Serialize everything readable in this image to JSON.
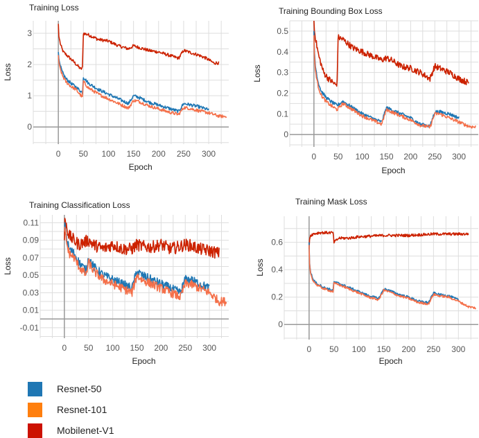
{
  "colors": {
    "resnet50": "#1f77b4",
    "resnet101": "#ff7f0e",
    "mobilenet": "#cc2200",
    "resnet101_line": "#f4704a",
    "grid": "#dddddd",
    "axis": "#999999",
    "text": "#222222",
    "tick_text": "#555555"
  },
  "legend": [
    {
      "label": "Resnet-50",
      "color": "#1f77b4"
    },
    {
      "label": "Resnet-101",
      "color": "#ff7f0e"
    },
    {
      "label": "Mobilenet-V1",
      "color": "#cc1100"
    }
  ],
  "chart_data": [
    {
      "type": "line",
      "title": "Training Loss",
      "xlabel": "Epoch",
      "ylabel": "Loss",
      "xlim": [
        -50,
        340
      ],
      "ylim": [
        -0.55,
        3.4
      ],
      "xticks": [
        0,
        50,
        100,
        150,
        200,
        250,
        300
      ],
      "yticks": [
        0,
        1,
        2,
        3
      ],
      "ytick_labels": [
        "0",
        "1",
        "2",
        "3"
      ],
      "grid": true,
      "series": [
        {
          "name": "Mobilenet-V1",
          "color": "#cc2200",
          "x": [
            0,
            1,
            5,
            10,
            20,
            30,
            45,
            48,
            50,
            60,
            80,
            100,
            120,
            140,
            150,
            160,
            180,
            200,
            220,
            240,
            250,
            260,
            280,
            295,
            310,
            320
          ],
          "y": [
            3.3,
            2.9,
            2.6,
            2.4,
            2.25,
            2.1,
            1.85,
            1.9,
            3.0,
            2.95,
            2.8,
            2.75,
            2.6,
            2.5,
            2.6,
            2.55,
            2.45,
            2.4,
            2.3,
            2.2,
            2.45,
            2.4,
            2.3,
            2.2,
            2.05,
            2.05
          ],
          "noise": 0.05
        },
        {
          "name": "Resnet-50",
          "color": "#1f77b4",
          "x": [
            0,
            1,
            3,
            8,
            15,
            25,
            35,
            48,
            50,
            60,
            80,
            100,
            120,
            140,
            150,
            160,
            180,
            200,
            220,
            240,
            250,
            260,
            280,
            300
          ],
          "y": [
            2.4,
            2.2,
            2.0,
            1.75,
            1.55,
            1.4,
            1.28,
            1.1,
            1.6,
            1.4,
            1.2,
            1.05,
            0.9,
            0.75,
            1.0,
            0.95,
            0.8,
            0.7,
            0.6,
            0.5,
            0.75,
            0.72,
            0.65,
            0.55
          ],
          "noise": 0.05
        },
        {
          "name": "Resnet-101",
          "color": "#f4704a",
          "x": [
            0,
            1,
            3,
            8,
            15,
            25,
            35,
            48,
            50,
            60,
            80,
            100,
            120,
            140,
            150,
            160,
            180,
            200,
            220,
            240,
            250,
            260,
            280,
            300,
            320,
            335
          ],
          "y": [
            2.3,
            2.1,
            1.9,
            1.65,
            1.45,
            1.3,
            1.2,
            0.95,
            1.45,
            1.25,
            1.05,
            0.9,
            0.75,
            0.6,
            0.85,
            0.82,
            0.68,
            0.58,
            0.48,
            0.4,
            0.62,
            0.6,
            0.52,
            0.45,
            0.35,
            0.33
          ],
          "noise": 0.05
        }
      ]
    },
    {
      "type": "line",
      "title": "Training Bounding Box Loss",
      "xlabel": "Epoch",
      "ylabel": "Loss",
      "xlim": [
        -50,
        340
      ],
      "ylim": [
        -0.06,
        0.55
      ],
      "xticks": [
        0,
        50,
        100,
        150,
        200,
        250,
        300
      ],
      "yticks": [
        0,
        0.1,
        0.2,
        0.3,
        0.4,
        0.5
      ],
      "ytick_labels": [
        "0",
        "0.1",
        "0.2",
        "0.3",
        "0.4",
        "0.5"
      ],
      "grid": true,
      "series": [
        {
          "name": "Mobilenet-V1",
          "color": "#cc2200",
          "x": [
            0,
            1,
            5,
            10,
            20,
            30,
            45,
            48,
            50,
            60,
            80,
            100,
            120,
            140,
            150,
            160,
            180,
            200,
            220,
            240,
            250,
            260,
            280,
            300,
            320
          ],
          "y": [
            0.55,
            0.5,
            0.44,
            0.38,
            0.3,
            0.27,
            0.24,
            0.25,
            0.47,
            0.46,
            0.42,
            0.4,
            0.38,
            0.36,
            0.37,
            0.36,
            0.33,
            0.32,
            0.3,
            0.27,
            0.33,
            0.32,
            0.3,
            0.27,
            0.25
          ],
          "noise": 0.015
        },
        {
          "name": "Resnet-50",
          "color": "#1f77b4",
          "x": [
            0,
            1,
            3,
            8,
            15,
            25,
            35,
            48,
            60,
            80,
            100,
            120,
            140,
            150,
            160,
            180,
            200,
            220,
            240,
            250,
            260,
            280,
            300
          ],
          "y": [
            0.5,
            0.4,
            0.33,
            0.26,
            0.21,
            0.18,
            0.16,
            0.14,
            0.16,
            0.13,
            0.1,
            0.08,
            0.06,
            0.13,
            0.12,
            0.1,
            0.08,
            0.05,
            0.04,
            0.11,
            0.11,
            0.1,
            0.08
          ],
          "noise": 0.008
        },
        {
          "name": "Resnet-101",
          "color": "#f4704a",
          "x": [
            0,
            1,
            3,
            8,
            15,
            25,
            35,
            48,
            60,
            80,
            100,
            120,
            140,
            150,
            160,
            180,
            200,
            220,
            240,
            250,
            260,
            280,
            300,
            320,
            335
          ],
          "y": [
            0.48,
            0.38,
            0.31,
            0.24,
            0.19,
            0.16,
            0.14,
            0.12,
            0.15,
            0.12,
            0.09,
            0.07,
            0.05,
            0.12,
            0.11,
            0.09,
            0.07,
            0.045,
            0.035,
            0.1,
            0.1,
            0.08,
            0.06,
            0.04,
            0.035
          ],
          "noise": 0.008
        }
      ]
    },
    {
      "type": "line",
      "title": "Training Classification Loss",
      "xlabel": "Epoch",
      "ylabel": "Loss",
      "xlim": [
        -50,
        340
      ],
      "ylim": [
        -0.022,
        0.119
      ],
      "xticks": [
        0,
        50,
        100,
        150,
        200,
        250,
        300
      ],
      "yticks": [
        -0.01,
        0.01,
        0.03,
        0.05,
        0.07,
        0.09,
        0.11
      ],
      "ytick_labels": [
        "-0.01",
        "0.01",
        "0.03",
        "0.05",
        "0.07",
        "0.09",
        "0.11"
      ],
      "grid": true,
      "series": [
        {
          "name": "Mobilenet-V1",
          "color": "#cc2200",
          "x": [
            0,
            1,
            5,
            10,
            20,
            30,
            50,
            60,
            80,
            100,
            120,
            140,
            150,
            160,
            180,
            200,
            220,
            240,
            250,
            260,
            280,
            300,
            320
          ],
          "y": [
            0.09,
            0.115,
            0.105,
            0.095,
            0.09,
            0.085,
            0.09,
            0.085,
            0.08,
            0.085,
            0.08,
            0.08,
            0.085,
            0.083,
            0.082,
            0.085,
            0.08,
            0.083,
            0.085,
            0.084,
            0.08,
            0.078,
            0.075
          ],
          "noise": 0.007
        },
        {
          "name": "Resnet-50",
          "color": "#1f77b4",
          "x": [
            0,
            1,
            5,
            10,
            20,
            30,
            45,
            50,
            60,
            80,
            100,
            120,
            140,
            150,
            160,
            180,
            200,
            220,
            240,
            250,
            260,
            280,
            300
          ],
          "y": [
            0.1,
            0.11,
            0.09,
            0.08,
            0.075,
            0.065,
            0.055,
            0.07,
            0.06,
            0.05,
            0.045,
            0.04,
            0.035,
            0.055,
            0.05,
            0.045,
            0.04,
            0.035,
            0.03,
            0.045,
            0.045,
            0.04,
            0.035
          ],
          "noise": 0.005
        },
        {
          "name": "Resnet-101",
          "color": "#f4704a",
          "x": [
            0,
            1,
            5,
            10,
            20,
            30,
            45,
            50,
            60,
            80,
            100,
            120,
            140,
            150,
            160,
            180,
            200,
            220,
            240,
            250,
            260,
            280,
            300,
            320,
            335
          ],
          "y": [
            0.1,
            0.105,
            0.085,
            0.075,
            0.07,
            0.06,
            0.05,
            0.065,
            0.055,
            0.045,
            0.04,
            0.035,
            0.03,
            0.05,
            0.045,
            0.04,
            0.035,
            0.03,
            0.025,
            0.04,
            0.04,
            0.035,
            0.03,
            0.02,
            0.02
          ],
          "noise": 0.005
        }
      ]
    },
    {
      "type": "line",
      "title": "Training Mask Loss",
      "xlabel": "Epoch",
      "ylabel": "Loss",
      "xlim": [
        -50,
        340
      ],
      "ylim": [
        -0.11,
        0.79
      ],
      "xticks": [
        0,
        50,
        100,
        150,
        200,
        250,
        300
      ],
      "yticks": [
        0,
        0.2,
        0.4,
        0.6
      ],
      "ytick_labels": [
        "0",
        "0.2",
        "0.4",
        "0.6"
      ],
      "grid": true,
      "series": [
        {
          "name": "Mobilenet-V1",
          "color": "#cc2200",
          "x": [
            0,
            1,
            3,
            8,
            20,
            40,
            48,
            50,
            60,
            80,
            100,
            150,
            200,
            250,
            300,
            320
          ],
          "y": [
            0.55,
            0.62,
            0.65,
            0.66,
            0.67,
            0.67,
            0.67,
            0.6,
            0.63,
            0.63,
            0.64,
            0.65,
            0.65,
            0.66,
            0.66,
            0.66
          ],
          "noise": 0.01
        },
        {
          "name": "Resnet-50",
          "color": "#1f77b4",
          "x": [
            0,
            1,
            3,
            8,
            15,
            30,
            48,
            50,
            60,
            80,
            100,
            120,
            140,
            150,
            160,
            180,
            200,
            220,
            240,
            250,
            260,
            280,
            300
          ],
          "y": [
            0.6,
            0.45,
            0.38,
            0.33,
            0.3,
            0.27,
            0.25,
            0.31,
            0.3,
            0.27,
            0.24,
            0.21,
            0.19,
            0.26,
            0.25,
            0.22,
            0.2,
            0.17,
            0.16,
            0.23,
            0.22,
            0.21,
            0.18
          ],
          "noise": 0.008
        },
        {
          "name": "Resnet-101",
          "color": "#f4704a",
          "x": [
            0,
            1,
            3,
            8,
            15,
            30,
            48,
            50,
            60,
            80,
            100,
            120,
            140,
            150,
            160,
            180,
            200,
            220,
            240,
            250,
            260,
            280,
            300,
            320,
            335
          ],
          "y": [
            0.58,
            0.44,
            0.37,
            0.32,
            0.29,
            0.26,
            0.24,
            0.3,
            0.29,
            0.26,
            0.23,
            0.2,
            0.18,
            0.25,
            0.24,
            0.21,
            0.19,
            0.16,
            0.15,
            0.22,
            0.21,
            0.2,
            0.17,
            0.13,
            0.12
          ],
          "noise": 0.008
        }
      ]
    }
  ]
}
